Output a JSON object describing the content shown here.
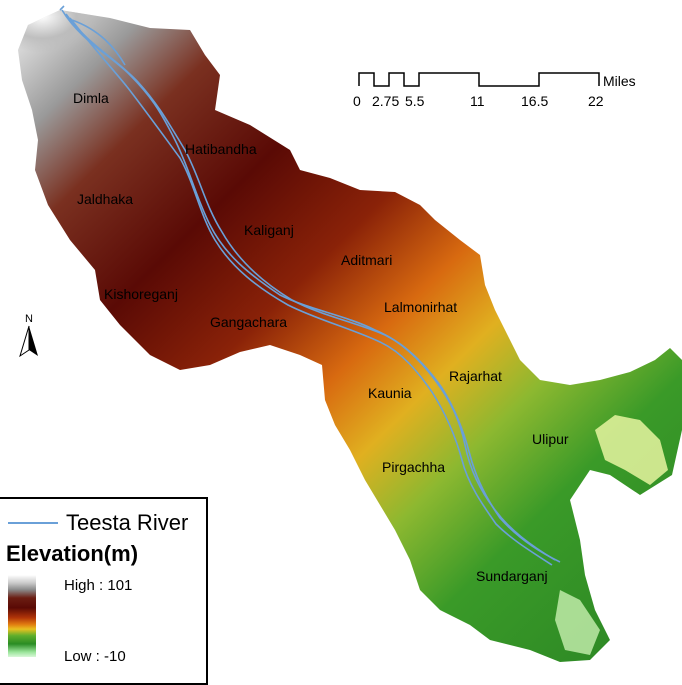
{
  "places": {
    "dimla": "Dimla",
    "hatibandha": "Hatibandha",
    "jaldhaka": "Jaldhaka",
    "kaliganj": "Kaliganj",
    "aditmari": "Aditmari",
    "kishoreganj": "Kishoreganj",
    "gangachara": "Gangachara",
    "lalmonirhat": "Lalmonirhat",
    "rajarhat": "Rajarhat",
    "kaunia": "Kaunia",
    "ulipur": "Ulipur",
    "pirgachha": "Pirgachha",
    "sundarganj": "Sundarganj"
  },
  "scalebar": {
    "unit": "Miles",
    "ticks": [
      "0",
      "2.75",
      "5.5",
      "11",
      "16.5",
      "22"
    ]
  },
  "north_arrow": {
    "label": "N"
  },
  "legend": {
    "river_label": "Teesta River",
    "elevation_title": "Elevation(m)",
    "high_label": "High : 101",
    "low_label": "Low : -10"
  },
  "colors": {
    "river": "#6aa0d8",
    "high": "#ffffff",
    "mid_high": "#5a0a05",
    "mid": "#e07a10",
    "mid_low": "#2a8c24",
    "low": "#d8f8d8"
  }
}
